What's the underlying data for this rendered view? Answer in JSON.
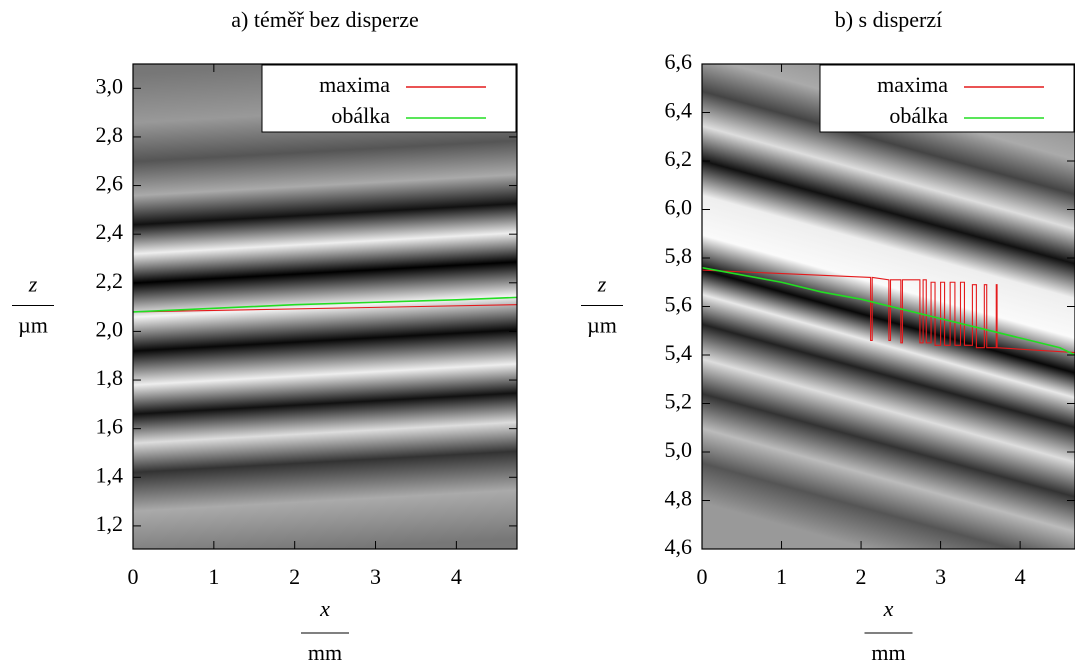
{
  "chart_data": [
    {
      "type": "line",
      "title": "a) téměř bez disperze",
      "xlabel": "x",
      "xunit": "mm",
      "ylabel": "z",
      "yunit": "µm",
      "xlim": [
        0,
        4.75
      ],
      "ylim": [
        1.105,
        3.1
      ],
      "xticks": [
        0,
        1,
        2,
        3,
        4
      ],
      "yticks": [
        {
          "value": 1.2,
          "label": "1,2"
        },
        {
          "value": 1.4,
          "label": "1,4"
        },
        {
          "value": 1.6,
          "label": "1,6"
        },
        {
          "value": 1.8,
          "label": "1,8"
        },
        {
          "value": 2.0,
          "label": "2,0"
        },
        {
          "value": 2.2,
          "label": "2,2"
        },
        {
          "value": 2.4,
          "label": "2,4"
        },
        {
          "value": 2.6,
          "label": "2,6"
        },
        {
          "value": 2.8,
          "label": "2,8"
        },
        {
          "value": 3.0,
          "label": "3,0"
        }
      ],
      "grid": false,
      "legend": "upper right",
      "series": [
        {
          "name": "maxima",
          "color": "#e41a1c",
          "x": [
            0,
            4.75
          ],
          "values": [
            2.08,
            2.11
          ]
        },
        {
          "name": "obálka",
          "color": "#22dd22",
          "x": [
            0,
            1,
            2,
            3,
            4,
            4.75
          ],
          "values": [
            2.08,
            2.095,
            2.11,
            2.12,
            2.13,
            2.14
          ]
        }
      ]
    },
    {
      "type": "line",
      "title": "b) s disperzí",
      "xlabel": "x",
      "xunit": "mm",
      "ylabel": "z",
      "yunit": "µm",
      "xlim": [
        0,
        4.69
      ],
      "ylim": [
        4.6,
        6.6
      ],
      "xticks": [
        0,
        1,
        2,
        3,
        4
      ],
      "yticks": [
        {
          "value": 4.6,
          "label": "4,6"
        },
        {
          "value": 4.8,
          "label": "4,8"
        },
        {
          "value": 5.0,
          "label": "5,0"
        },
        {
          "value": 5.2,
          "label": "5,2"
        },
        {
          "value": 5.4,
          "label": "5,4"
        },
        {
          "value": 5.6,
          "label": "5,6"
        },
        {
          "value": 5.8,
          "label": "5,8"
        },
        {
          "value": 6.0,
          "label": "6,0"
        },
        {
          "value": 6.2,
          "label": "6,2"
        },
        {
          "value": 6.4,
          "label": "6,4"
        },
        {
          "value": 6.6,
          "label": "6,6"
        }
      ],
      "grid": false,
      "legend": "upper right",
      "series": [
        {
          "name": "maxima",
          "color": "#e41a1c",
          "x": [
            0,
            2.12,
            2.12,
            2.14,
            2.14,
            2.35,
            2.35,
            2.37,
            2.37,
            2.5,
            2.5,
            2.52,
            2.52,
            2.74,
            2.74,
            2.78,
            2.78,
            2.82,
            2.82,
            2.88,
            2.88,
            2.93,
            2.93,
            3.0,
            3.0,
            3.05,
            3.05,
            3.12,
            3.12,
            3.18,
            3.18,
            3.25,
            3.25,
            3.3,
            3.3,
            3.4,
            3.4,
            3.45,
            3.45,
            3.55,
            3.55,
            3.58,
            3.58,
            3.7,
            3.7,
            3.71,
            3.71,
            4.69
          ],
          "values": [
            5.75,
            5.72,
            5.46,
            5.46,
            5.72,
            5.71,
            5.46,
            5.46,
            5.71,
            5.71,
            5.45,
            5.45,
            5.71,
            5.71,
            5.45,
            5.45,
            5.71,
            5.71,
            5.45,
            5.45,
            5.7,
            5.7,
            5.44,
            5.44,
            5.7,
            5.7,
            5.44,
            5.44,
            5.7,
            5.7,
            5.44,
            5.44,
            5.7,
            5.7,
            5.44,
            5.44,
            5.69,
            5.69,
            5.43,
            5.43,
            5.69,
            5.69,
            5.43,
            5.43,
            5.69,
            5.69,
            5.43,
            5.41
          ]
        },
        {
          "name": "obálka",
          "color": "#22dd22",
          "x": [
            0,
            0.5,
            1,
            1.5,
            2,
            2.5,
            3,
            3.5,
            4,
            4.5,
            4.69
          ],
          "values": [
            5.76,
            5.73,
            5.7,
            5.66,
            5.63,
            5.59,
            5.55,
            5.51,
            5.47,
            5.43,
            5.4
          ]
        }
      ]
    }
  ]
}
